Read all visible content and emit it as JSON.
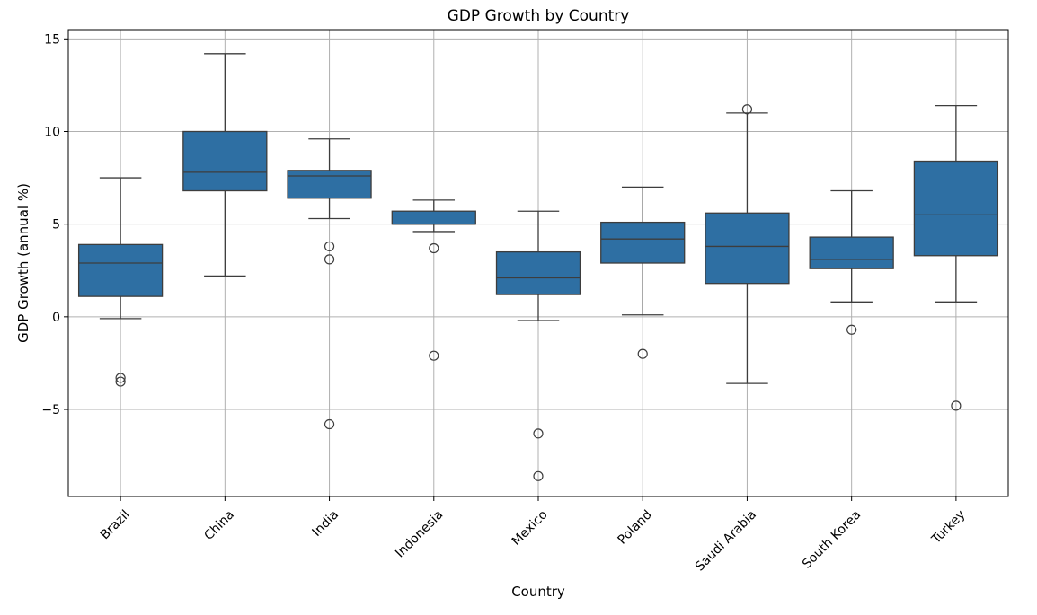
{
  "chart_data": {
    "type": "box",
    "title": "GDP Growth by Country",
    "xlabel": "Country",
    "ylabel": "GDP Growth (annual %)",
    "ylim": [
      -9.7,
      15.5
    ],
    "yticks": [
      -5,
      0,
      5,
      10,
      15
    ],
    "ytick_labels": [
      "−5",
      "0",
      "5",
      "10",
      "15"
    ],
    "grid": true,
    "box_color": "#2e6fa3",
    "line_color": "#3d3d3d",
    "categories": [
      "Brazil",
      "China",
      "India",
      "Indonesia",
      "Mexico",
      "Poland",
      "Saudi Arabia",
      "South Korea",
      "Turkey"
    ],
    "boxes": [
      {
        "name": "Brazil",
        "whislo": -0.1,
        "q1": 1.1,
        "med": 2.9,
        "q3": 3.9,
        "whishi": 7.5,
        "fliers": [
          -3.3,
          -3.5
        ]
      },
      {
        "name": "China",
        "whislo": 2.2,
        "q1": 6.8,
        "med": 7.8,
        "q3": 10.0,
        "whishi": 14.2,
        "fliers": []
      },
      {
        "name": "India",
        "whislo": 5.3,
        "q1": 6.4,
        "med": 7.6,
        "q3": 7.9,
        "whishi": 9.6,
        "fliers": [
          3.8,
          3.1,
          -5.8
        ]
      },
      {
        "name": "Indonesia",
        "whislo": 4.6,
        "q1": 5.0,
        "med": 5.0,
        "q3": 5.7,
        "whishi": 6.3,
        "fliers": [
          3.7,
          -2.1
        ]
      },
      {
        "name": "Mexico",
        "whislo": -0.2,
        "q1": 1.2,
        "med": 2.1,
        "q3": 3.5,
        "whishi": 5.7,
        "fliers": [
          -6.3,
          -8.6
        ]
      },
      {
        "name": "Poland",
        "whislo": 0.1,
        "q1": 2.9,
        "med": 4.2,
        "q3": 5.1,
        "whishi": 7.0,
        "fliers": [
          -2.0
        ]
      },
      {
        "name": "Saudi Arabia",
        "whislo": -3.6,
        "q1": 1.8,
        "med": 3.8,
        "q3": 5.6,
        "whishi": 11.0,
        "fliers": [
          11.2
        ]
      },
      {
        "name": "South Korea",
        "whislo": 0.8,
        "q1": 2.6,
        "med": 3.1,
        "q3": 4.3,
        "whishi": 6.8,
        "fliers": [
          -0.7
        ]
      },
      {
        "name": "Turkey",
        "whislo": 0.8,
        "q1": 3.3,
        "med": 5.5,
        "q3": 8.4,
        "whishi": 11.4,
        "fliers": [
          -4.8
        ]
      }
    ]
  }
}
